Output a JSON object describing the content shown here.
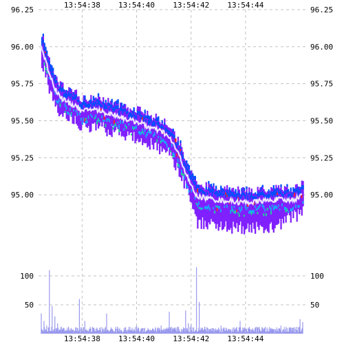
{
  "chart_data": [
    {
      "type": "heatmap",
      "title": "",
      "xlabel": "",
      "ylabel": "",
      "x_ticks": [
        "13:54:38",
        "13:54:40",
        "13:54:42",
        "13:54:44"
      ],
      "x_tick_positions_s": [
        38,
        40,
        42,
        44
      ],
      "xlim_s": [
        36.4,
        46.2
      ],
      "y_ticks": [
        "96.25",
        "96.00",
        "95.75",
        "95.50",
        "95.25",
        "95.00"
      ],
      "ylim": [
        94.55,
        96.25
      ],
      "grid": true,
      "series": [
        {
          "name": "",
          "color": "#ffffff",
          "x": [
            36.5,
            36.8,
            37.0,
            37.2,
            37.5,
            37.8,
            38.0,
            38.3,
            38.6,
            38.9,
            39.2,
            39.5,
            39.8,
            40.1,
            40.4,
            40.7,
            41.0,
            41.3,
            41.6,
            41.9,
            42.2,
            42.5,
            42.8,
            43.1,
            43.4,
            43.7,
            44.0,
            44.3,
            44.6,
            44.9,
            45.2,
            45.5,
            45.8,
            46.1
          ],
          "y": [
            96.0,
            95.82,
            95.72,
            95.66,
            95.62,
            95.6,
            95.56,
            95.58,
            95.57,
            95.55,
            95.54,
            95.52,
            95.5,
            95.49,
            95.46,
            95.44,
            95.42,
            95.36,
            95.25,
            95.1,
            94.99,
            94.98,
            94.97,
            94.96,
            94.96,
            94.95,
            94.95,
            94.95,
            94.96,
            94.96,
            94.97,
            94.96,
            94.97,
            95.0
          ]
        }
      ],
      "band_colors": [
        "#8020ff",
        "#0050ff",
        "#18a8ff",
        "#18e090",
        "#ff2020"
      ]
    },
    {
      "type": "bar",
      "title": "",
      "xlabel": "",
      "ylabel": "",
      "y_ticks": [
        "100",
        "50"
      ],
      "ylim": [
        0,
        125
      ],
      "color": "#9999ee",
      "spikes": [
        {
          "x": 36.5,
          "v": 35
        },
        {
          "x": 36.6,
          "v": 22
        },
        {
          "x": 36.7,
          "v": 14
        },
        {
          "x": 36.8,
          "v": 110
        },
        {
          "x": 36.9,
          "v": 48
        },
        {
          "x": 37.0,
          "v": 30
        },
        {
          "x": 37.1,
          "v": 18
        },
        {
          "x": 37.3,
          "v": 9
        },
        {
          "x": 37.5,
          "v": 12
        },
        {
          "x": 37.9,
          "v": 60
        },
        {
          "x": 38.1,
          "v": 22
        },
        {
          "x": 38.4,
          "v": 10
        },
        {
          "x": 38.9,
          "v": 35
        },
        {
          "x": 39.3,
          "v": 12
        },
        {
          "x": 39.6,
          "v": 8
        },
        {
          "x": 40.0,
          "v": 14
        },
        {
          "x": 40.3,
          "v": 10
        },
        {
          "x": 40.6,
          "v": 9
        },
        {
          "x": 40.9,
          "v": 14
        },
        {
          "x": 41.2,
          "v": 38
        },
        {
          "x": 41.5,
          "v": 12
        },
        {
          "x": 41.8,
          "v": 40
        },
        {
          "x": 41.9,
          "v": 18
        },
        {
          "x": 42.0,
          "v": 16
        },
        {
          "x": 42.2,
          "v": 115
        },
        {
          "x": 42.3,
          "v": 55
        },
        {
          "x": 42.5,
          "v": 12
        },
        {
          "x": 42.8,
          "v": 9
        },
        {
          "x": 43.1,
          "v": 14
        },
        {
          "x": 43.4,
          "v": 8
        },
        {
          "x": 43.8,
          "v": 22
        },
        {
          "x": 44.1,
          "v": 10
        },
        {
          "x": 44.5,
          "v": 12
        },
        {
          "x": 44.9,
          "v": 8
        },
        {
          "x": 45.3,
          "v": 14
        },
        {
          "x": 45.7,
          "v": 10
        },
        {
          "x": 46.0,
          "v": 25
        },
        {
          "x": 46.1,
          "v": 20
        }
      ]
    }
  ]
}
